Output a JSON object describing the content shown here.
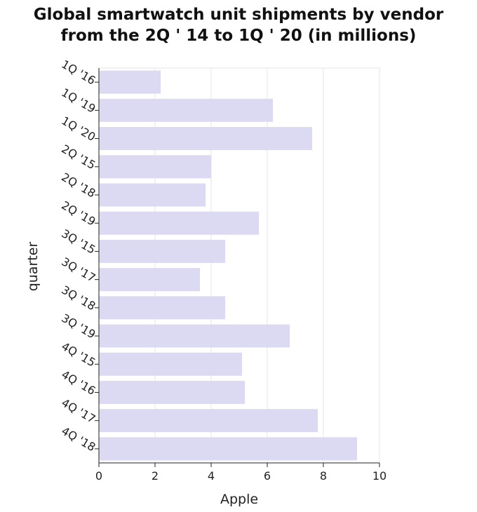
{
  "chart_data": {
    "type": "bar",
    "orientation": "horizontal",
    "title": "Global smartwatch unit shipments by vendor from the 2Q ' 14 to 1Q ' 20 (in millions)",
    "title_lines": [
      "Global smartwatch unit shipments by vendor",
      "from the 2Q ' 14 to 1Q ' 20 (in millions)"
    ],
    "xlabel": "Apple",
    "ylabel": "quarter",
    "xlim": [
      0,
      10
    ],
    "x_ticks": [
      "0",
      "2",
      "4",
      "6",
      "8",
      "10"
    ],
    "grid": true,
    "legend": "none",
    "categories": [
      "1Q '16",
      "1Q '19",
      "1Q '20",
      "2Q '15",
      "2Q '18",
      "2Q '19",
      "3Q '15",
      "3Q '17",
      "3Q '18",
      "3Q '19",
      "4Q '15",
      "4Q '16",
      "4Q '17",
      "4Q '18"
    ],
    "values": [
      2.2,
      6.2,
      7.6,
      4.0,
      3.8,
      5.7,
      4.5,
      3.6,
      4.5,
      6.8,
      5.1,
      5.2,
      7.8,
      9.2
    ],
    "bar_color": "#dcdaf2"
  }
}
